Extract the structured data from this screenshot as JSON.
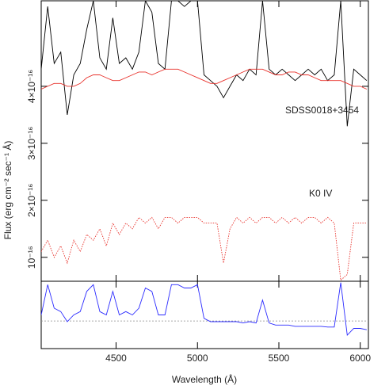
{
  "chart_data": [
    {
      "type": "line",
      "y_label": "Flux (erg cm⁻² sec⁻¹ Å)",
      "x": [
        4040,
        4080,
        4120,
        4160,
        4200,
        4240,
        4280,
        4320,
        4360,
        4400,
        4440,
        4480,
        4520,
        4560,
        4600,
        4640,
        4680,
        4720,
        4760,
        4800,
        4840,
        4880,
        4920,
        4960,
        5000,
        5040,
        5080,
        5120,
        5160,
        5200,
        5240,
        5280,
        5320,
        5360,
        5400,
        5440,
        5480,
        5520,
        5560,
        5600,
        5640,
        5680,
        5720,
        5760,
        5800,
        5840,
        5880,
        5920,
        5960,
        6000,
        6040
      ],
      "xlim": [
        4040,
        6050
      ],
      "ylim": [
        0.58,
        5.5
      ],
      "yticks": [
        {
          "value": 1,
          "label": "10⁻¹⁶"
        },
        {
          "value": 2,
          "label": "2×10⁻¹⁶"
        },
        {
          "value": 3,
          "label": "3×10⁻¹⁶"
        },
        {
          "value": 4,
          "label": "4×10⁻¹⁶"
        }
      ],
      "series": [
        {
          "name": "SDSS0018+3454",
          "color": "#000000",
          "dashed": false,
          "values": [
            4.3,
            5.4,
            4.4,
            4.6,
            3.5,
            4.2,
            4.4,
            5.0,
            5.5,
            4.5,
            4.3,
            5.2,
            4.4,
            4.5,
            4.3,
            4.6,
            5.5,
            5.3,
            4.4,
            4.3,
            5.5,
            5.5,
            5.4,
            5.5,
            5.5,
            4.2,
            4.1,
            4.0,
            3.8,
            4.0,
            4.2,
            4.1,
            4.3,
            4.2,
            5.5,
            4.3,
            4.2,
            4.3,
            4.2,
            4.1,
            4.2,
            4.3,
            4.2,
            4.3,
            4.1,
            4.2,
            5.5,
            3.3,
            4.3,
            4.2,
            4.1
          ]
        },
        {
          "color": "#e8302a",
          "dashed": false,
          "values": [
            3.95,
            4.0,
            4.05,
            4.05,
            4.0,
            4.0,
            4.05,
            4.15,
            4.2,
            4.2,
            4.15,
            4.1,
            4.1,
            4.15,
            4.2,
            4.25,
            4.25,
            4.2,
            4.25,
            4.3,
            4.3,
            4.3,
            4.25,
            4.2,
            4.15,
            4.1,
            4.05,
            4.05,
            4.1,
            4.15,
            4.2,
            4.25,
            4.3,
            4.3,
            4.3,
            4.25,
            4.2,
            4.2,
            4.25,
            4.25,
            4.2,
            4.2,
            4.15,
            4.1,
            4.1,
            4.1,
            4.1,
            4.05,
            4.0,
            4.0,
            3.95
          ]
        },
        {
          "name": "K0 IV",
          "color": "#e8302a",
          "dashed": true,
          "values": [
            1.1,
            1.3,
            1.0,
            1.2,
            0.9,
            1.3,
            1.1,
            1.4,
            1.3,
            1.5,
            1.2,
            1.6,
            1.4,
            1.6,
            1.5,
            1.7,
            1.6,
            1.7,
            1.5,
            1.7,
            1.7,
            1.6,
            1.7,
            1.7,
            1.7,
            1.6,
            1.6,
            1.6,
            0.9,
            1.5,
            1.7,
            1.6,
            1.7,
            1.6,
            1.7,
            1.7,
            1.6,
            1.7,
            1.6,
            1.7,
            1.6,
            1.7,
            1.7,
            1.6,
            1.7,
            1.6,
            0.6,
            0.7,
            1.6,
            1.6,
            1.6
          ]
        }
      ]
    },
    {
      "type": "line",
      "x_label": "Wavelength (Å)",
      "x": [
        4040,
        4080,
        4120,
        4160,
        4200,
        4240,
        4280,
        4320,
        4360,
        4400,
        4440,
        4480,
        4520,
        4560,
        4600,
        4640,
        4680,
        4720,
        4760,
        4800,
        4840,
        4880,
        4920,
        4960,
        5000,
        5040,
        5080,
        5120,
        5160,
        5200,
        5240,
        5280,
        5320,
        5360,
        5400,
        5440,
        5480,
        5520,
        5560,
        5600,
        5640,
        5680,
        5720,
        5760,
        5800,
        5840,
        5880,
        5920,
        5960,
        6000,
        6040
      ],
      "xlim": [
        4040,
        6050
      ],
      "xticks": [
        4500,
        5000,
        5500,
        6000
      ],
      "ylim": [
        0,
        1
      ],
      "hline": 0.41,
      "series": [
        {
          "color": "#2b2bff",
          "dashed": false,
          "values": [
            0.5,
            0.95,
            0.6,
            0.55,
            0.4,
            0.5,
            0.55,
            0.85,
            0.95,
            0.55,
            0.5,
            0.85,
            0.5,
            0.55,
            0.5,
            0.6,
            0.9,
            0.85,
            0.5,
            0.5,
            0.95,
            0.95,
            0.9,
            0.9,
            0.95,
            0.45,
            0.4,
            0.4,
            0.4,
            0.4,
            0.4,
            0.38,
            0.4,
            0.38,
            0.72,
            0.38,
            0.35,
            0.35,
            0.35,
            0.33,
            0.33,
            0.33,
            0.33,
            0.33,
            0.32,
            0.32,
            0.98,
            0.2,
            0.3,
            0.3,
            0.28
          ]
        }
      ]
    }
  ]
}
